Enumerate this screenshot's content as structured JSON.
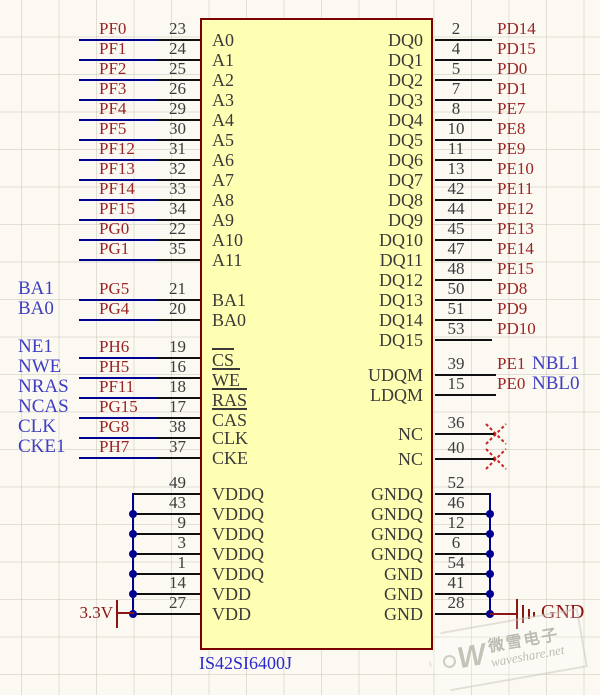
{
  "part": {
    "number": "IS42SI6400J"
  },
  "colors": {
    "bg": "#FBF9F2",
    "chip_fill": "#FFFFB4",
    "chip_border": "#7B0000",
    "wire_blue": "#000090",
    "pin_black": "#101010",
    "text_dark": "#3A3A3A",
    "number_gray": "#3C3C3C",
    "net_label_red": "#9B2424",
    "port_blue": "#3E3EC2",
    "power_red": "#8B1414",
    "part_blue": "#2929CC",
    "nc_red": "#CC2222"
  },
  "left_address": [
    {
      "net": "PF0",
      "num": "23",
      "pin": "A0"
    },
    {
      "net": "PF1",
      "num": "24",
      "pin": "A1"
    },
    {
      "net": "PF2",
      "num": "25",
      "pin": "A2"
    },
    {
      "net": "PF3",
      "num": "26",
      "pin": "A3"
    },
    {
      "net": "PF4",
      "num": "29",
      "pin": "A4"
    },
    {
      "net": "PF5",
      "num": "30",
      "pin": "A5"
    },
    {
      "net": "PF12",
      "num": "31",
      "pin": "A6"
    },
    {
      "net": "PF13",
      "num": "32",
      "pin": "A7"
    },
    {
      "net": "PF14",
      "num": "33",
      "pin": "A8"
    },
    {
      "net": "PF15",
      "num": "34",
      "pin": "A9"
    },
    {
      "net": "PG0",
      "num": "22",
      "pin": "A10"
    },
    {
      "net": "PG1",
      "num": "35",
      "pin": "A11"
    }
  ],
  "left_bank": [
    {
      "port": "BA1",
      "net": "PG5",
      "num": "21",
      "pin": "BA1"
    },
    {
      "port": "BA0",
      "net": "PG4",
      "num": "20",
      "pin": "BA0"
    }
  ],
  "left_control": [
    {
      "port": "NE1",
      "net": "PH6",
      "num": "19",
      "pin": "CS",
      "overline": true
    },
    {
      "port": "NWE",
      "net": "PH5",
      "num": "16",
      "pin": "WE",
      "overline": true
    },
    {
      "port": "NRAS",
      "net": "PF11",
      "num": "18",
      "pin": "RAS",
      "overline": true
    },
    {
      "port": "NCAS",
      "net": "PG15",
      "num": "17",
      "pin": "CAS",
      "overline": true
    },
    {
      "port": "CLK",
      "net": "PG8",
      "num": "38",
      "pin": "CLK",
      "overline": false
    },
    {
      "port": "CKE1",
      "net": "PH7",
      "num": "37",
      "pin": "CKE",
      "overline": false
    }
  ],
  "left_power": [
    {
      "num": "49",
      "pin": "VDDQ"
    },
    {
      "num": "43",
      "pin": "VDDQ"
    },
    {
      "num": "9",
      "pin": "VDDQ"
    },
    {
      "num": "3",
      "pin": "VDDQ"
    },
    {
      "num": "1",
      "pin": "VDDQ"
    },
    {
      "num": "14",
      "pin": "VDD"
    },
    {
      "num": "27",
      "pin": "VDD"
    }
  ],
  "right_data": [
    {
      "num": "2",
      "net": "PD14",
      "pin": "DQ0"
    },
    {
      "num": "4",
      "net": "PD15",
      "pin": "DQ1"
    },
    {
      "num": "5",
      "net": "PD0",
      "pin": "DQ2"
    },
    {
      "num": "7",
      "net": "PD1",
      "pin": "DQ3"
    },
    {
      "num": "8",
      "net": "PE7",
      "pin": "DQ4"
    },
    {
      "num": "10",
      "net": "PE8",
      "pin": "DQ5"
    },
    {
      "num": "11",
      "net": "PE9",
      "pin": "DQ6"
    },
    {
      "num": "13",
      "net": "PE10",
      "pin": "DQ7"
    },
    {
      "num": "42",
      "net": "PE11",
      "pin": "DQ8"
    },
    {
      "num": "44",
      "net": "PE12",
      "pin": "DQ9"
    },
    {
      "num": "45",
      "net": "PE13",
      "pin": "DQ10"
    },
    {
      "num": "47",
      "net": "PE14",
      "pin": "DQ11"
    },
    {
      "num": "48",
      "net": "PE15",
      "pin": "DQ12"
    },
    {
      "num": "50",
      "net": "PD8",
      "pin": "DQ13"
    },
    {
      "num": "51",
      "net": "PD9",
      "pin": "DQ14"
    },
    {
      "num": "53",
      "net": "PD10",
      "pin": "DQ15"
    }
  ],
  "right_dqm": [
    {
      "num": "39",
      "net": "PE1",
      "port": "NBL1",
      "pin": "UDQM"
    },
    {
      "num": "15",
      "net": "PE0",
      "port": "NBL0",
      "pin": "LDQM"
    }
  ],
  "right_nc": [
    {
      "num": "36",
      "pin": "NC"
    },
    {
      "num": "40",
      "pin": "NC"
    }
  ],
  "right_ground": [
    {
      "num": "52",
      "pin": "GNDQ"
    },
    {
      "num": "46",
      "pin": "GNDQ"
    },
    {
      "num": "12",
      "pin": "GNDQ"
    },
    {
      "num": "6",
      "pin": "GNDQ"
    },
    {
      "num": "54",
      "pin": "GND"
    },
    {
      "num": "41",
      "pin": "GND"
    },
    {
      "num": "28",
      "pin": "GND"
    }
  ],
  "power_labels": {
    "supply": "3.3V",
    "ground": "GND"
  },
  "watermark": {
    "logo": "W",
    "cn": "微雪电子",
    "en": "waveshare.net"
  }
}
